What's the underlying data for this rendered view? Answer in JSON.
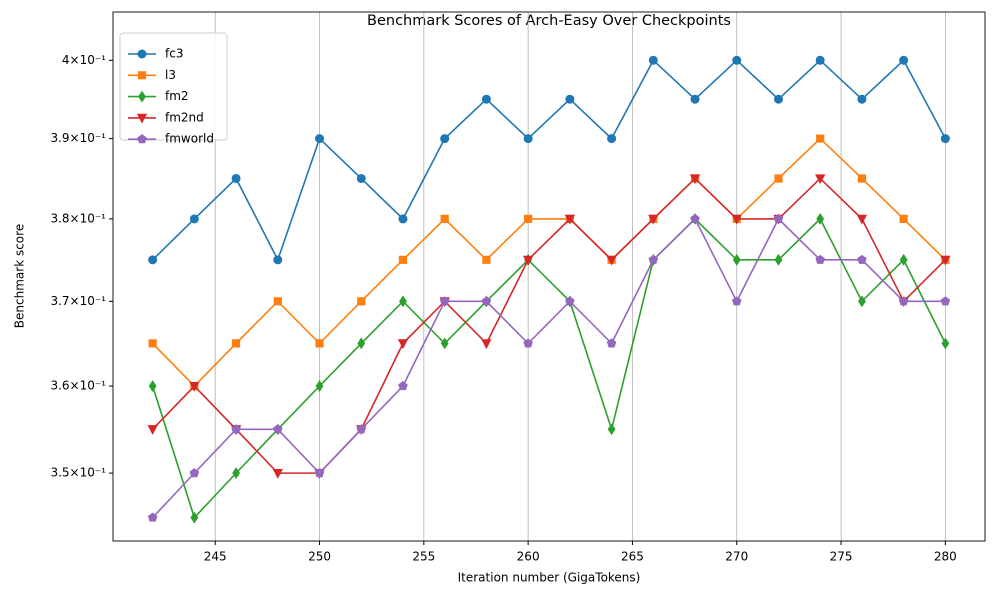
{
  "chart_data": {
    "type": "line",
    "title": "Benchmark Scores of Arch-Easy Over Checkpoints",
    "xlabel": "Iteration number (GigaTokens)",
    "ylabel": "Benchmark score",
    "x": [
      242,
      244,
      246,
      248,
      250,
      252,
      254,
      256,
      258,
      260,
      262,
      264,
      266,
      268,
      270,
      272,
      274,
      276,
      278,
      280
    ],
    "series": [
      {
        "name": "fc3",
        "color": "#1f77b4",
        "marker": "circle",
        "values": [
          0.375,
          0.38,
          0.385,
          0.375,
          0.39,
          0.385,
          0.38,
          0.39,
          0.395,
          0.39,
          0.395,
          0.39,
          0.4,
          0.395,
          0.4,
          0.395,
          0.4,
          0.395,
          0.4,
          0.39
        ]
      },
      {
        "name": "l3",
        "color": "#ff7f0e",
        "marker": "square",
        "values": [
          0.365,
          0.36,
          0.365,
          0.37,
          0.365,
          0.37,
          0.375,
          0.38,
          0.375,
          0.38,
          0.38,
          0.375,
          0.38,
          0.385,
          0.38,
          0.385,
          0.39,
          0.385,
          0.38,
          0.375
        ]
      },
      {
        "name": "fm2",
        "color": "#2ca02c",
        "marker": "diamond",
        "values": [
          0.36,
          0.345,
          0.35,
          0.355,
          0.36,
          0.365,
          0.37,
          0.365,
          0.37,
          0.375,
          0.37,
          0.355,
          0.375,
          0.38,
          0.375,
          0.375,
          0.38,
          0.37,
          0.375,
          0.365
        ]
      },
      {
        "name": "fm2nd",
        "color": "#d62728",
        "marker": "triangle-down",
        "values": [
          0.355,
          0.36,
          0.355,
          0.35,
          0.35,
          0.355,
          0.365,
          0.37,
          0.365,
          0.375,
          0.38,
          0.375,
          0.38,
          0.385,
          0.38,
          0.38,
          0.385,
          0.38,
          0.37,
          0.375
        ]
      },
      {
        "name": "fmworld",
        "color": "#9467bd",
        "marker": "pentagon",
        "values": [
          0.345,
          0.35,
          0.355,
          0.355,
          0.35,
          0.355,
          0.36,
          0.37,
          0.37,
          0.365,
          0.37,
          0.365,
          0.375,
          0.38,
          0.37,
          0.38,
          0.375,
          0.375,
          0.37,
          0.37
        ]
      }
    ],
    "xlim": [
      240.1,
      281.9
    ],
    "xticks": [
      245,
      250,
      255,
      260,
      265,
      270,
      275,
      280
    ],
    "ylim": [
      0.3424,
      0.4063
    ],
    "ylog": true,
    "yticks": [
      {
        "value": 0.35,
        "label": "3.5×10⁻¹"
      },
      {
        "value": 0.36,
        "label": "3.6×10⁻¹"
      },
      {
        "value": 0.37,
        "label": "3.7×10⁻¹"
      },
      {
        "value": 0.38,
        "label": "3.8×10⁻¹"
      },
      {
        "value": 0.39,
        "label": "3.9×10⁻¹"
      },
      {
        "value": 0.4,
        "label": "4×10⁻¹"
      }
    ],
    "xgrid": true,
    "legend": "upper-left"
  }
}
